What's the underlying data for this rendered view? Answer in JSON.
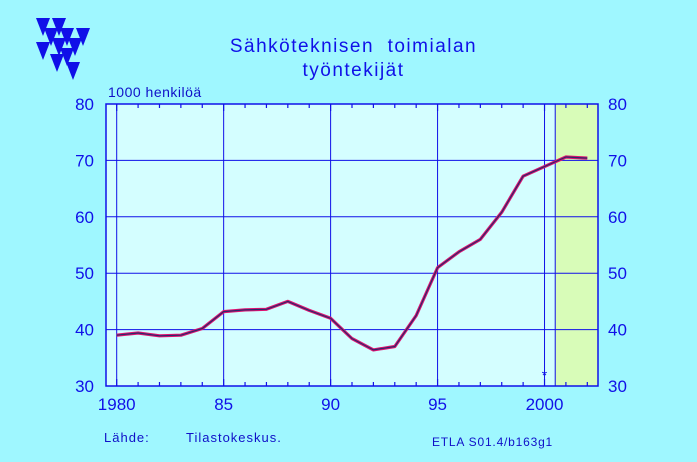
{
  "title_lines": [
    "Sähköteknisen  toimialan",
    "työntekijät"
  ],
  "unit_label": "1000 henkilöä",
  "source_label": "Lähde:",
  "source_value": "Tilastokeskus.",
  "code": "ETLA S01.4/b163g1",
  "forecast_marker": "*",
  "colors": {
    "background": "#9ff7ff",
    "plot_area": "#d4feff",
    "forecast_band": "#d8fcb8",
    "axis": "#1010e8",
    "grid": "#1010e8",
    "line_outer": "#e01070",
    "line_inner": "#2a2a6a"
  },
  "chart_data": {
    "type": "line",
    "title": "Sähköteknisen toimialan työntekijät",
    "ylabel": "1000 henkilöä",
    "xlim": [
      1979.5,
      2002.5
    ],
    "ylim": [
      30,
      80
    ],
    "x_ticks": [
      1980,
      1985,
      1990,
      1995,
      2000
    ],
    "x_tick_labels": [
      "1980",
      "85",
      "90",
      "95",
      "2000"
    ],
    "y_ticks": [
      30,
      40,
      50,
      60,
      70,
      80
    ],
    "grid": true,
    "forecast_region": [
      2000.5,
      2002.5
    ],
    "series": [
      {
        "x": [
          1980,
          1981,
          1982,
          1983,
          1984,
          1985,
          1986,
          1987,
          1988,
          1989,
          1990,
          1991,
          1992,
          1993,
          1994,
          1995,
          1996,
          1997,
          1998,
          1999,
          2000,
          2001,
          2002
        ],
        "values": [
          39.0,
          39.4,
          38.9,
          39.0,
          40.2,
          43.2,
          43.5,
          43.6,
          45.0,
          43.4,
          42.0,
          38.4,
          36.4,
          37.0,
          42.5,
          51.0,
          53.8,
          56.0,
          60.8,
          67.2,
          68.9,
          70.6,
          70.4
        ]
      }
    ]
  }
}
